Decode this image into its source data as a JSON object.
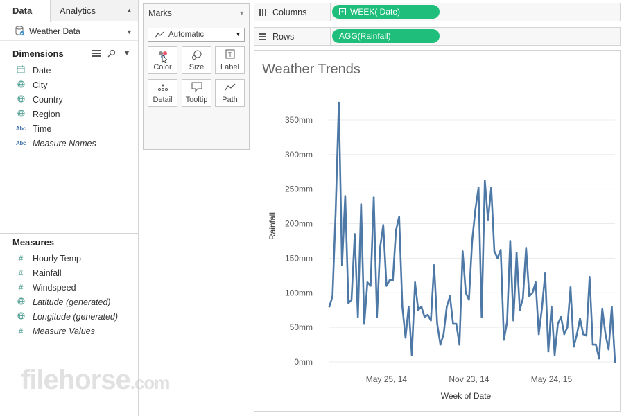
{
  "data_pane": {
    "tabs": [
      {
        "label": "Data"
      },
      {
        "label": "Analytics"
      }
    ],
    "datasource": "Weather Data",
    "dimensions_title": "Dimensions",
    "dimensions": [
      {
        "label": "Date",
        "icon": "calendar-icon",
        "italic": false
      },
      {
        "label": "City",
        "icon": "globe-icon",
        "italic": false
      },
      {
        "label": "Country",
        "icon": "globe-icon",
        "italic": false
      },
      {
        "label": "Region",
        "icon": "globe-icon",
        "italic": false
      },
      {
        "label": "Time",
        "icon": "abc-icon",
        "italic": false
      },
      {
        "label": "Measure Names",
        "icon": "abc-icon",
        "italic": true
      }
    ],
    "measures_title": "Measures",
    "measures": [
      {
        "label": "Hourly Temp",
        "icon": "hash-icon",
        "italic": false
      },
      {
        "label": "Rainfall",
        "icon": "hash-icon",
        "italic": false
      },
      {
        "label": "Windspeed",
        "icon": "hash-icon",
        "italic": false
      },
      {
        "label": "Latitude (generated)",
        "icon": "globe-icon",
        "italic": true
      },
      {
        "label": "Longitude (generated)",
        "icon": "globe-icon",
        "italic": true
      },
      {
        "label": "Measure Values",
        "icon": "hash-icon",
        "italic": true
      }
    ]
  },
  "marks": {
    "title": "Marks",
    "mark_type": "Automatic",
    "buttons": [
      {
        "label": "Color",
        "icon": "color-icon"
      },
      {
        "label": "Size",
        "icon": "size-icon"
      },
      {
        "label": "Label",
        "icon": "label-icon"
      },
      {
        "label": "Detail",
        "icon": "detail-icon"
      },
      {
        "label": "Tooltip",
        "icon": "tooltip-icon"
      },
      {
        "label": "Path",
        "icon": "path-icon"
      }
    ]
  },
  "shelves": {
    "columns_label": "Columns",
    "columns_pill": "WEEK( Date)",
    "rows_label": "Rows",
    "rows_pill": "AGG(Rainfall)"
  },
  "watermark": {
    "text": "filehorse",
    "suffix": ".com"
  },
  "chart_data": {
    "type": "line",
    "title": "Weather Trends",
    "xlabel": "Week of Date",
    "ylabel": "Rainfall",
    "y_ticks": [
      "0mm",
      "50mm",
      "100mm",
      "150mm",
      "200mm",
      "250mm",
      "300mm",
      "350mm"
    ],
    "ylim": [
      0,
      370
    ],
    "x_ticks": [
      {
        "label": "May 25, 14",
        "index": 18
      },
      {
        "label": "Nov 23, 14",
        "index": 44
      },
      {
        "label": "May 24, 15",
        "index": 70
      }
    ],
    "color": "#4e79a7",
    "series": [
      {
        "values": [
          80,
          95,
          220,
          375,
          140,
          240,
          85,
          90,
          185,
          65,
          228,
          55,
          115,
          110,
          238,
          65,
          165,
          198,
          110,
          118,
          118,
          190,
          210,
          80,
          35,
          80,
          10,
          115,
          75,
          80,
          65,
          68,
          60,
          140,
          55,
          25,
          40,
          80,
          95,
          55,
          55,
          25,
          160,
          100,
          90,
          175,
          220,
          252,
          65,
          262,
          205,
          252,
          160,
          150,
          162,
          32,
          58,
          175,
          60,
          158,
          75,
          92,
          165,
          95,
          100,
          115,
          40,
          78,
          128,
          15,
          80,
          10,
          55,
          65,
          40,
          50,
          108,
          22,
          40,
          63,
          40,
          38,
          123,
          25,
          25,
          5,
          77,
          40,
          18,
          80,
          0
        ]
      }
    ]
  }
}
